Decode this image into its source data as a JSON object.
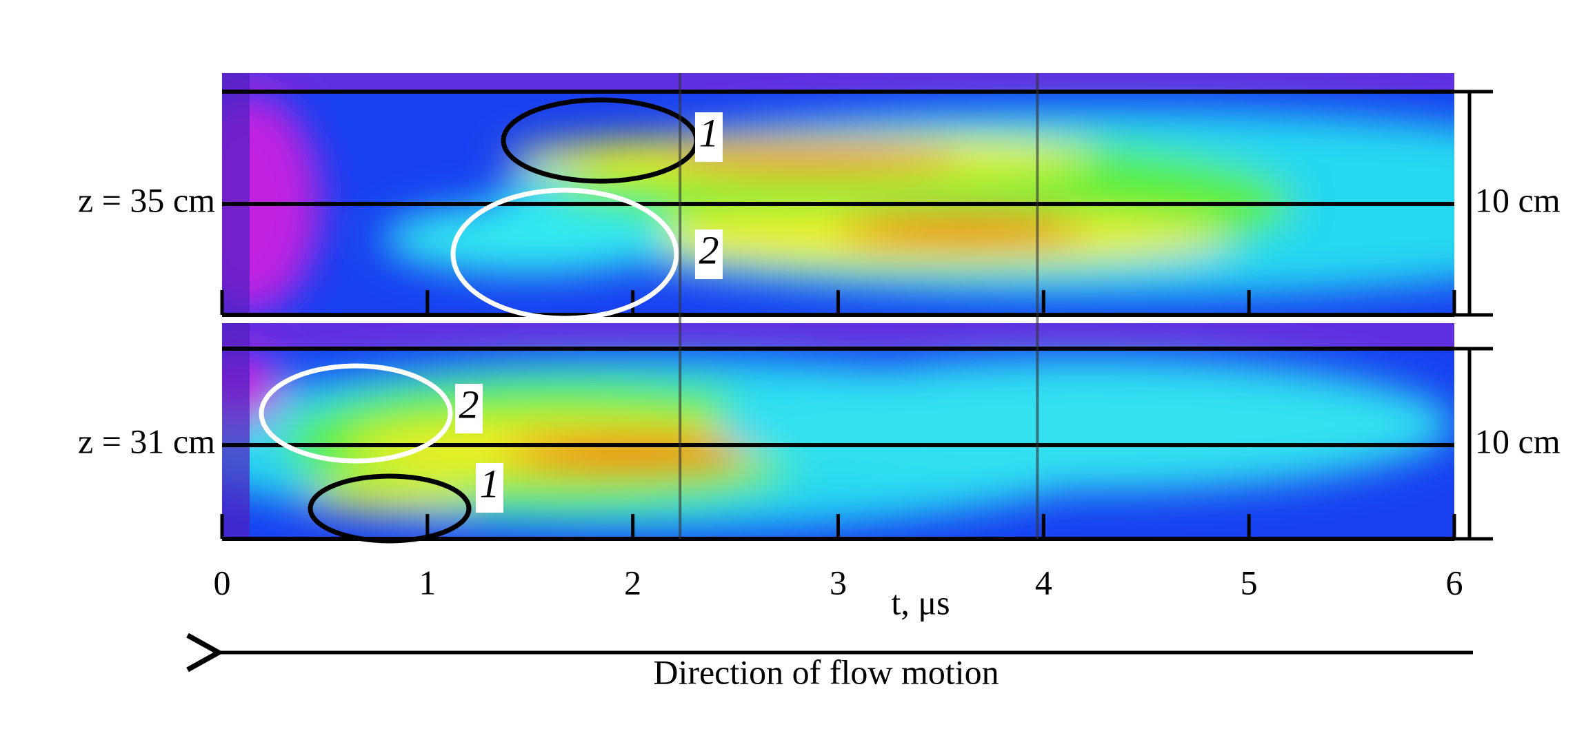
{
  "x_axis": {
    "label": "t, μs",
    "lim": [
      0,
      6
    ],
    "ticks": [
      0,
      1,
      2,
      3,
      4,
      5,
      6
    ]
  },
  "panels": [
    {
      "label": "z = 35 cm",
      "scale": "10 cm",
      "annotations": [
        "1",
        "2"
      ]
    },
    {
      "label": "z = 31 cm",
      "scale": "10 cm",
      "annotations": [
        "2",
        "1"
      ]
    }
  ],
  "caption": "Direction of flow motion"
}
